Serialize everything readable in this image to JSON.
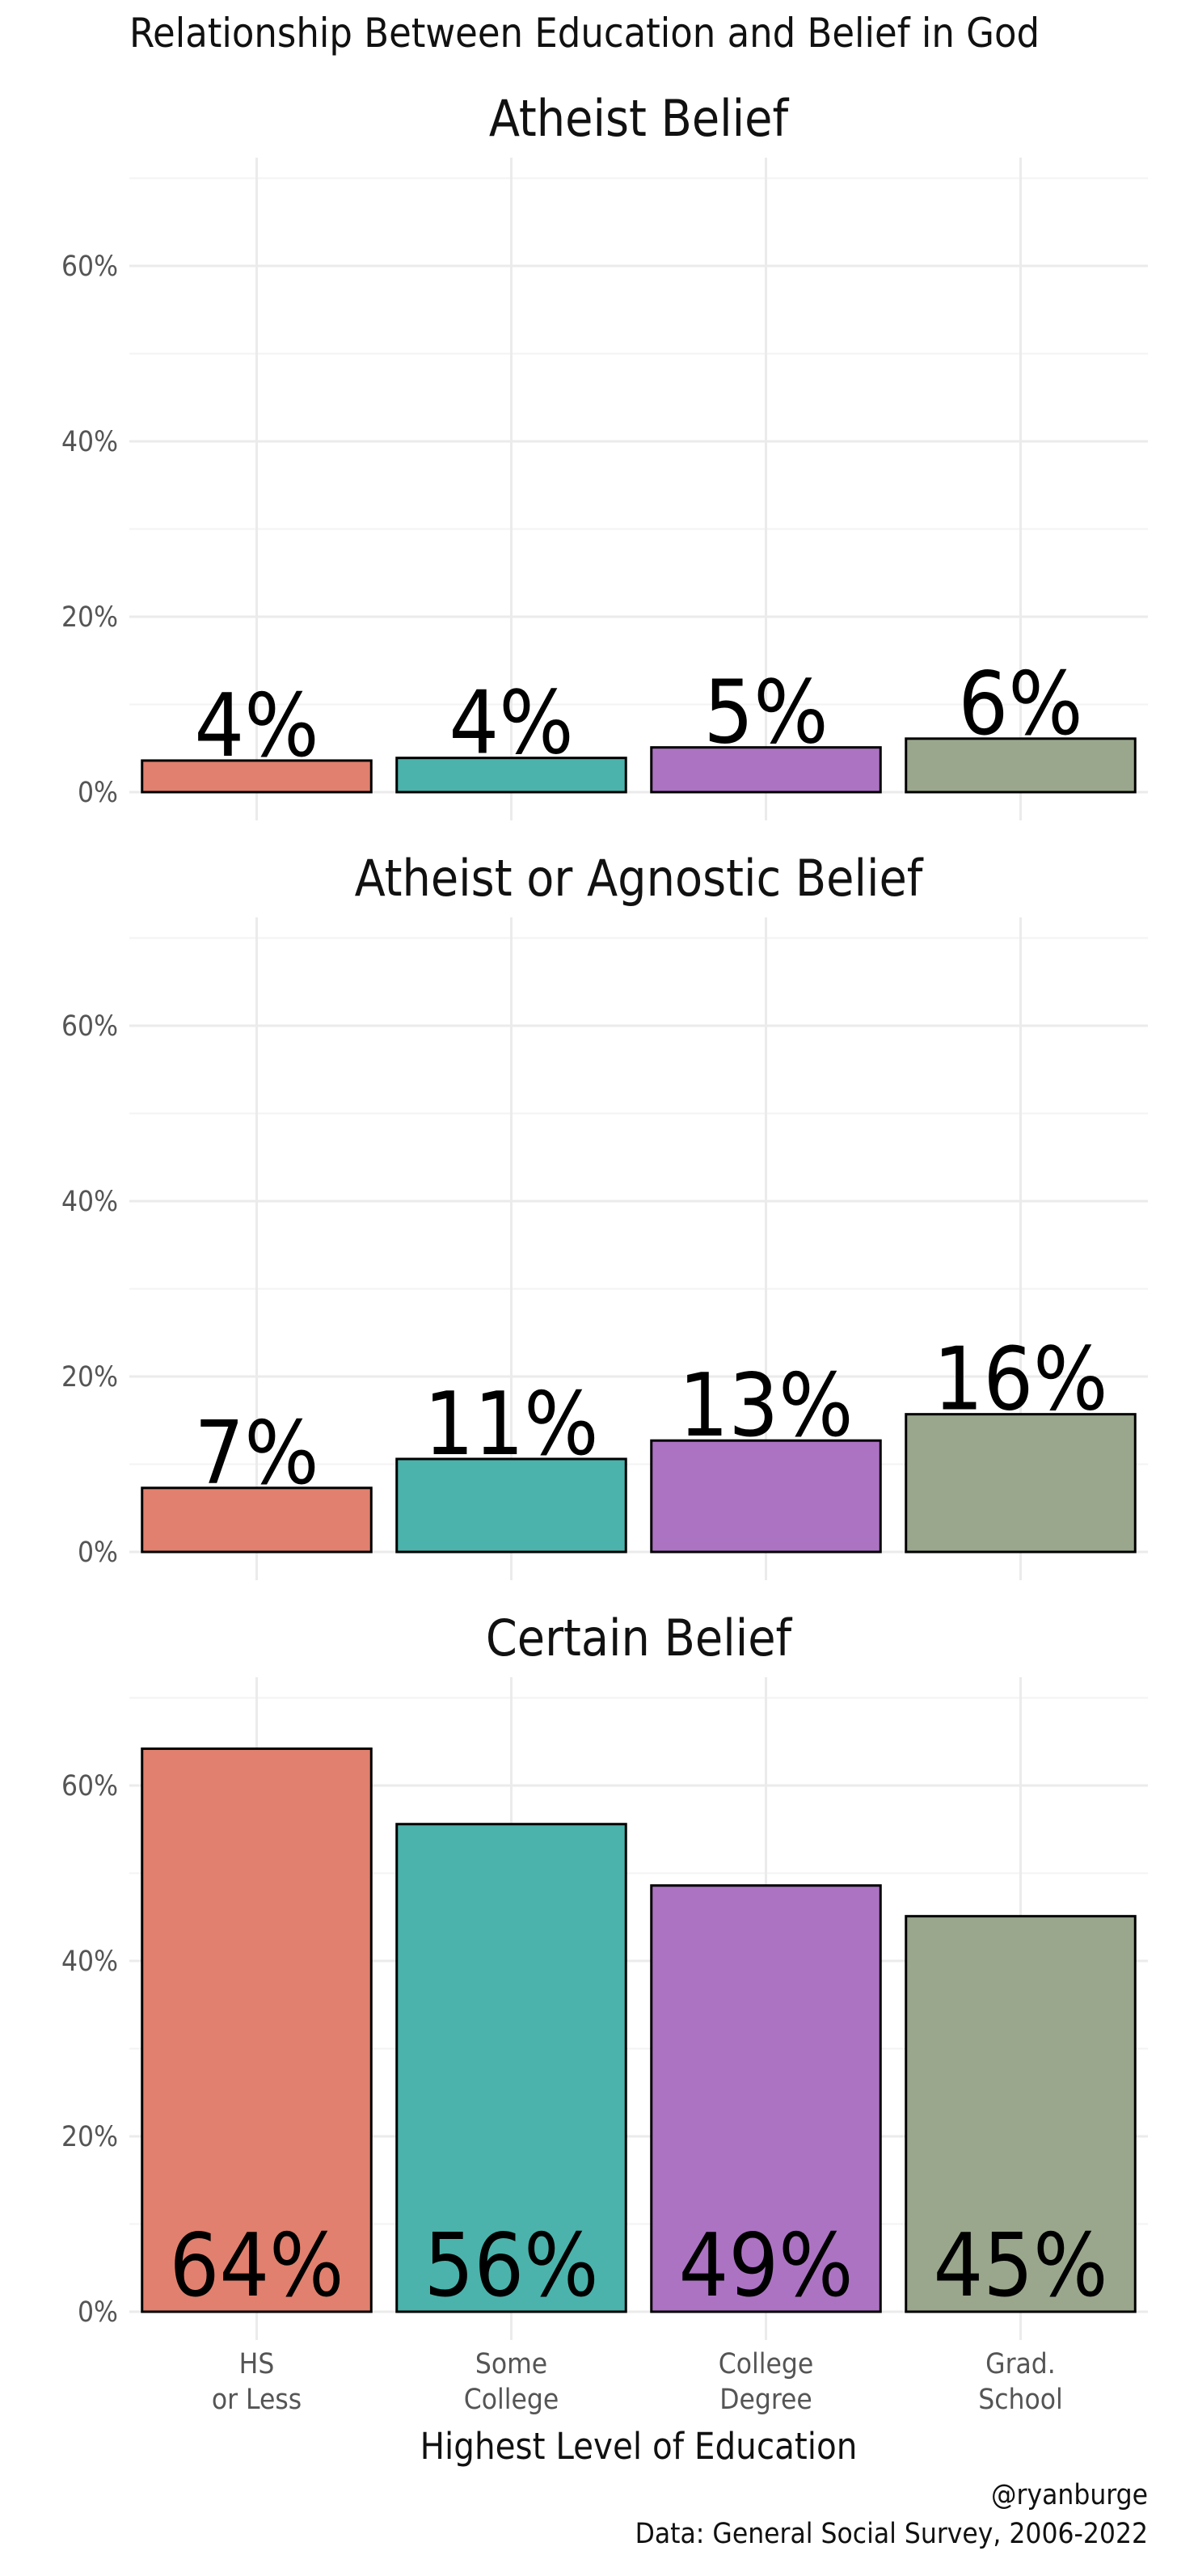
{
  "title": "Relationship Between Education and Belief in God",
  "colors": {
    "hs_or_less": "#e1806e",
    "some_college": "#4bb3ab",
    "college_degree": "#ac73c3",
    "grad_school": "#9aa78d",
    "bar_outline": "#000000",
    "grid": "#ebebeb"
  },
  "xlabel": "Highest Level of Education",
  "caption_lines": [
    "@ryanburge",
    "Data: General Social Survey, 2006-2022"
  ],
  "chart_data": {
    "type": "bar",
    "categories": [
      [
        "HS",
        "or Less"
      ],
      [
        "Some",
        "College"
      ],
      [
        "College",
        "Degree"
      ],
      [
        "Grad.",
        "School"
      ]
    ],
    "ylim": [
      0,
      0.72
    ],
    "yticks": [
      0,
      0.2,
      0.4,
      0.6
    ],
    "ytick_labels": [
      "0%",
      "20%",
      "40%",
      "60%"
    ],
    "grid": true,
    "facets": [
      {
        "title": "Atheist Belief",
        "values": [
          0.036,
          0.039,
          0.051,
          0.061
        ],
        "labels": [
          "4%",
          "4%",
          "5%",
          "6%"
        ],
        "label_position": "above"
      },
      {
        "title": "Atheist or Agnostic Belief",
        "values": [
          0.073,
          0.106,
          0.127,
          0.157
        ],
        "labels": [
          "7%",
          "11%",
          "13%",
          "16%"
        ],
        "label_position": "above"
      },
      {
        "title": "Certain Belief",
        "values": [
          0.642,
          0.556,
          0.486,
          0.451
        ],
        "labels": [
          "64%",
          "56%",
          "49%",
          "45%"
        ],
        "label_position": "inside-bottom"
      }
    ]
  }
}
